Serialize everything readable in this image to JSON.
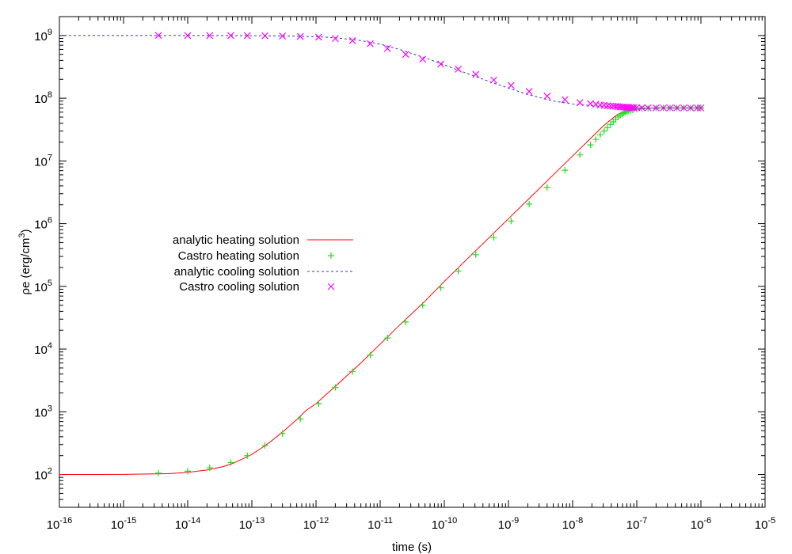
{
  "chart_data": {
    "type": "line",
    "title": "",
    "xlabel": "time (s)",
    "ylabel": {
      "prefix": "ρe (erg/cm",
      "sup": "3",
      "suffix": ")"
    },
    "x_scale": "log",
    "y_scale": "log",
    "xlim": [
      1e-16,
      1e-05
    ],
    "ylim": [
      30,
      2000000000.0
    ],
    "x_ticks": [
      {
        "base": "10",
        "exp": "-16",
        "value": 1e-16
      },
      {
        "base": "10",
        "exp": "-15",
        "value": 1e-15
      },
      {
        "base": "10",
        "exp": "-14",
        "value": 1e-14
      },
      {
        "base": "10",
        "exp": "-13",
        "value": 1e-13
      },
      {
        "base": "10",
        "exp": "-12",
        "value": 1e-12
      },
      {
        "base": "10",
        "exp": "-11",
        "value": 1e-11
      },
      {
        "base": "10",
        "exp": "-10",
        "value": 1e-10
      },
      {
        "base": "10",
        "exp": "-9",
        "value": 1e-09
      },
      {
        "base": "10",
        "exp": "-8",
        "value": 1e-08
      },
      {
        "base": "10",
        "exp": "-7",
        "value": 1e-07
      },
      {
        "base": "10",
        "exp": "-6",
        "value": 1e-06
      },
      {
        "base": "10",
        "exp": "-5",
        "value": 1e-05
      }
    ],
    "y_ticks": [
      {
        "base": "10",
        "exp": "2",
        "value": 100.0
      },
      {
        "base": "10",
        "exp": "3",
        "value": 1000.0
      },
      {
        "base": "10",
        "exp": "4",
        "value": 10000.0
      },
      {
        "base": "10",
        "exp": "5",
        "value": 100000.0
      },
      {
        "base": "10",
        "exp": "6",
        "value": 1000000.0
      },
      {
        "base": "10",
        "exp": "7",
        "value": 10000000.0
      },
      {
        "base": "10",
        "exp": "8",
        "value": 100000000.0
      },
      {
        "base": "10",
        "exp": "9",
        "value": 1000000000.0
      }
    ],
    "grid": false,
    "legend_position": "left-middle",
    "series": [
      {
        "name": "analytic heating solution",
        "kind": "line",
        "color": "#ff0000",
        "dash": "solid",
        "x": [
          1e-16,
          1e-15,
          5e-15,
          1e-14,
          2e-14,
          3.5e-14,
          5e-14,
          7e-14,
          1e-13,
          1.5e-13,
          2e-13,
          3e-13,
          5e-13,
          7e-13,
          1e-12,
          2e-12,
          5e-12,
          1e-11,
          2e-11,
          5e-11,
          1e-10,
          2e-10,
          5e-10,
          1e-09,
          2e-09,
          5e-09,
          1e-08,
          2e-08,
          3e-08,
          4e-08,
          5e-08,
          6e-08,
          8e-08,
          1e-07,
          2e-07,
          5e-07,
          1e-06
        ],
        "y": [
          100,
          100.5,
          103,
          108,
          118,
          133,
          150,
          175,
          210,
          275,
          340,
          475,
          750,
          1050,
          1350,
          2550,
          6000,
          12000,
          24000,
          58000,
          120000,
          240000,
          600000,
          1200000,
          2400000,
          6000000,
          12000000,
          24000000,
          36000000,
          46000000,
          55000000,
          60000000,
          66000000,
          68000000,
          70000000,
          70000000,
          70000000
        ]
      },
      {
        "name": "Castro heating solution",
        "kind": "points",
        "marker": "plus",
        "color": "#22dd22",
        "x": [
          3.5e-15,
          1e-14,
          2.2e-14,
          4.7e-14,
          8.5e-14,
          1.6e-13,
          3e-13,
          5.7e-13,
          1.1e-12,
          2e-12,
          3.7e-12,
          7e-12,
          1.3e-11,
          2.5e-11,
          4.6e-11,
          8.8e-11,
          1.65e-10,
          3.1e-10,
          5.9e-10,
          1.1e-09,
          2.1e-09,
          4e-09,
          7.6e-09,
          1.3e-08,
          1.9e-08,
          2.3e-08,
          2.7e-08,
          3.1e-08,
          3.5e-08,
          3.9e-08,
          4.3e-08,
          4.7e-08,
          5.1e-08,
          5.5e-08,
          5.9e-08,
          6.3e-08,
          6.7e-08,
          7.1e-08,
          7.5e-08,
          8e-08,
          8.5e-08,
          9e-08,
          1e-07,
          1.2e-07,
          1.5e-07,
          2e-07,
          2.6e-07,
          3.3e-07,
          4.2e-07,
          5.4e-07,
          6.9e-07,
          8.8e-07,
          1e-06
        ],
        "y": [
          105,
          113,
          128,
          155,
          200,
          290,
          450,
          770,
          1350,
          2450,
          4400,
          8000,
          15000,
          27000,
          50000,
          95000,
          175000,
          320000,
          600000,
          1100000,
          2050000,
          3800000,
          7100000,
          12500000,
          18000000,
          22000000,
          26000000,
          30000000,
          34000000,
          38000000,
          42000000,
          46000000,
          50000000,
          53000000,
          56000000,
          58000000,
          60000000,
          62000000,
          63000000,
          64000000,
          65000000,
          66000000,
          67000000,
          68000000,
          69000000,
          69500000,
          70000000,
          70000000,
          70000000,
          70000000,
          70000000,
          70000000,
          70000000
        ]
      },
      {
        "name": "analytic cooling solution",
        "kind": "line",
        "color": "#3333cc",
        "dash": "dashed",
        "x": [
          1e-16,
          1e-15,
          1e-14,
          1e-13,
          3e-13,
          1e-12,
          2e-12,
          5e-12,
          1e-11,
          2e-11,
          5e-11,
          1e-10,
          2e-10,
          5e-10,
          1e-09,
          2e-09,
          5e-09,
          1e-08,
          2e-08,
          3e-08,
          5e-08,
          7e-08,
          1e-07,
          2e-07,
          5e-07,
          1e-06
        ],
        "y": [
          1000000000,
          1000000000,
          999000000,
          995000000,
          985000000,
          960000000,
          920000000,
          830000000,
          730000000,
          600000000,
          440000000,
          340000000,
          260000000,
          185000000,
          145000000,
          115000000,
          90000000,
          81000000,
          76000000,
          73500000,
          71500000,
          70500000,
          70000000,
          70000000,
          70000000,
          70000000
        ]
      },
      {
        "name": "Castro cooling solution",
        "kind": "points",
        "marker": "cross",
        "color": "#ff00ff",
        "x": [
          3.5e-15,
          1e-14,
          2.2e-14,
          4.7e-14,
          8.5e-14,
          1.6e-13,
          3e-13,
          5.7e-13,
          1.1e-12,
          2e-12,
          3.7e-12,
          7e-12,
          1.3e-11,
          2.5e-11,
          4.6e-11,
          8.8e-11,
          1.65e-10,
          3.1e-10,
          5.9e-10,
          1.1e-09,
          2.1e-09,
          4e-09,
          7.6e-09,
          1.3e-08,
          1.9e-08,
          2.3e-08,
          2.7e-08,
          3.1e-08,
          3.5e-08,
          3.9e-08,
          4.3e-08,
          4.7e-08,
          5.1e-08,
          5.5e-08,
          5.9e-08,
          6.3e-08,
          6.7e-08,
          7.1e-08,
          7.5e-08,
          8e-08,
          8.5e-08,
          9e-08,
          1e-07,
          1.2e-07,
          1.5e-07,
          2e-07,
          2.6e-07,
          3.3e-07,
          4.2e-07,
          5.4e-07,
          6.9e-07,
          8.8e-07,
          1e-06
        ],
        "y": [
          1000000000,
          999000000,
          998000000,
          997000000,
          995000000,
          990000000,
          980000000,
          965000000,
          940000000,
          895000000,
          830000000,
          740000000,
          620000000,
          500000000,
          420000000,
          350000000,
          290000000,
          240000000,
          195000000,
          160000000,
          128000000,
          108000000,
          95000000,
          85000000,
          82000000,
          80000000,
          78000000,
          77000000,
          76000000,
          75000000,
          74500000,
          74000000,
          73500000,
          73000000,
          72500000,
          72000000,
          71800000,
          71500000,
          71300000,
          71000000,
          70800000,
          70600000,
          70500000,
          70300000,
          70200000,
          70100000,
          70000000,
          70000000,
          70000000,
          70000000,
          70000000,
          70000000,
          70000000
        ]
      }
    ]
  }
}
